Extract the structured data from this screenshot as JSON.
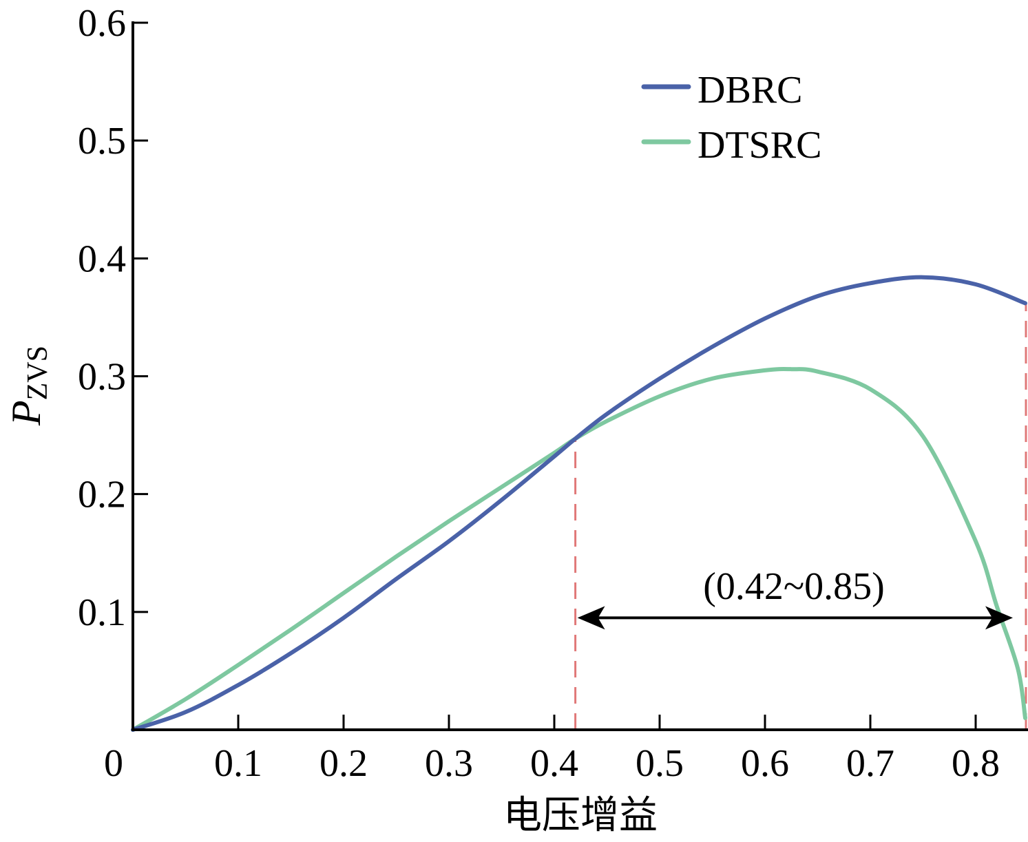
{
  "chart_data": {
    "type": "line",
    "xlabel": "电压增益",
    "ylabel_main": "P",
    "ylabel_sub": "ZVS",
    "xlim": [
      0,
      0.85
    ],
    "ylim": [
      0,
      0.6
    ],
    "x_ticks": [
      0.1,
      0.2,
      0.3,
      0.4,
      0.5,
      0.6,
      0.7,
      0.8
    ],
    "x_tick_labels": [
      "0.1",
      "0.2",
      "0.3",
      "0.4",
      "0.5",
      "0.6",
      "0.7",
      "0.8"
    ],
    "origin_label": "0",
    "y_ticks": [
      0.1,
      0.2,
      0.3,
      0.4,
      0.5,
      0.6
    ],
    "y_tick_labels": [
      "0.1",
      "0.2",
      "0.3",
      "0.4",
      "0.5",
      "0.6"
    ],
    "grid": false,
    "legend_position": "top-right",
    "series": [
      {
        "name": "DBRC",
        "color": "#4a62a8",
        "x": [
          0,
          0.05,
          0.1,
          0.15,
          0.2,
          0.25,
          0.3,
          0.35,
          0.4,
          0.42,
          0.45,
          0.5,
          0.55,
          0.6,
          0.65,
          0.7,
          0.75,
          0.8,
          0.85
        ],
        "y": [
          0,
          0.015,
          0.038,
          0.065,
          0.095,
          0.128,
          0.16,
          0.195,
          0.232,
          0.247,
          0.268,
          0.298,
          0.325,
          0.349,
          0.368,
          0.379,
          0.384,
          0.378,
          0.362
        ]
      },
      {
        "name": "DTSRC",
        "color": "#7ec8a0",
        "x": [
          0,
          0.05,
          0.1,
          0.15,
          0.2,
          0.25,
          0.3,
          0.35,
          0.4,
          0.42,
          0.45,
          0.5,
          0.55,
          0.6,
          0.625,
          0.65,
          0.7,
          0.75,
          0.8,
          0.82,
          0.84,
          0.85
        ],
        "y": [
          0,
          0.026,
          0.055,
          0.085,
          0.116,
          0.147,
          0.177,
          0.206,
          0.235,
          0.247,
          0.262,
          0.283,
          0.298,
          0.305,
          0.306,
          0.304,
          0.289,
          0.249,
          0.16,
          0.105,
          0.052,
          0.01
        ]
      }
    ],
    "annotations": {
      "range_text": "(0.42~0.85)",
      "range_start": 0.42,
      "range_end": 0.85,
      "range_y": 0.095,
      "marker_color": "#e07878"
    }
  }
}
